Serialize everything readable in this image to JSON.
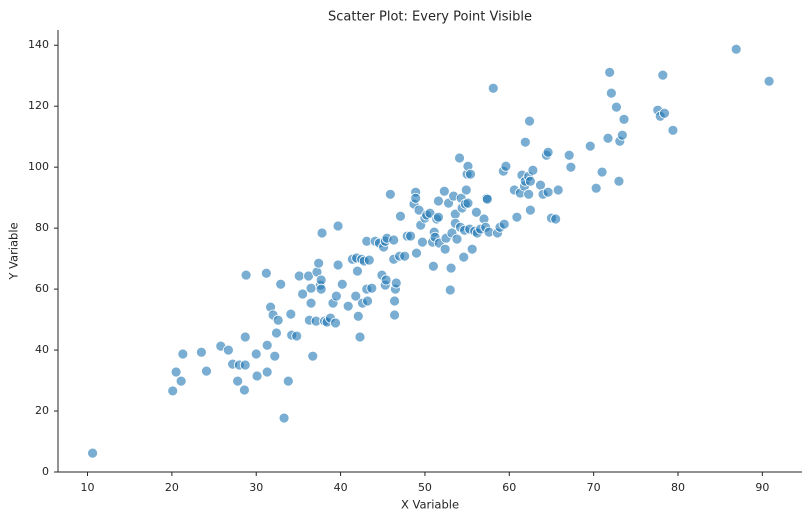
{
  "chart_data": {
    "type": "scatter",
    "title": "Scatter Plot: Every Point Visible",
    "x_label": "X Variable",
    "y_label": "Y Variable",
    "color": "#1f77b4",
    "xlim": [
      6.5,
      94.7
    ],
    "ylim": [
      0,
      145
    ],
    "xticks": [
      10,
      20,
      30,
      40,
      50,
      60,
      70,
      80,
      90
    ],
    "yticks": [
      0,
      20,
      40,
      60,
      80,
      100,
      120,
      140
    ],
    "x": [
      10.6,
      20.1,
      20.5,
      21.3,
      21.1,
      23.5,
      24.1,
      25.8,
      26.7,
      27.2,
      27.8,
      28.0,
      28.6,
      28.7,
      28.7,
      28.8,
      30.0,
      30.1,
      31.2,
      31.3,
      31.3,
      31.7,
      32.0,
      32.2,
      32.4,
      32.6,
      32.9,
      33.3,
      33.8,
      34.1,
      34.2,
      34.8,
      35.1,
      35.5,
      36.2,
      36.3,
      36.5,
      36.5,
      36.7,
      37.1,
      37.2,
      37.4,
      37.6,
      37.7,
      37.7,
      37.8,
      38.1,
      38.4,
      38.8,
      39.1,
      39.4,
      39.5,
      39.7,
      39.7,
      40.2,
      40.9,
      41.4,
      41.8,
      42.0,
      41.9,
      42.1,
      42.3,
      42.5,
      42.6,
      42.8,
      43.1,
      43.1,
      43.2,
      43.4,
      43.7,
      44.1,
      44.6,
      44.9,
      45.1,
      45.3,
      45.3,
      45.4,
      45.5,
      45.9,
      46.3,
      46.3,
      46.4,
      46.4,
      46.5,
      46.6,
      47.0,
      47.1,
      47.6,
      47.9,
      48.3,
      48.7,
      48.9,
      48.9,
      49.0,
      49.3,
      49.5,
      49.7,
      50.0,
      50.2,
      50.6,
      50.9,
      51.0,
      51.1,
      51.2,
      51.4,
      51.6,
      51.6,
      51.7,
      52.3,
      52.4,
      52.5,
      52.8,
      53.0,
      53.1,
      53.2,
      53.4,
      53.6,
      53.6,
      53.8,
      54.1,
      54.2,
      54.3,
      54.4,
      54.6,
      54.7,
      54.8,
      54.9,
      55.0,
      55.1,
      55.1,
      55.3,
      55.4,
      55.6,
      55.9,
      56.1,
      56.2,
      56.6,
      57.0,
      57.2,
      57.3,
      57.4,
      57.6,
      58.1,
      58.6,
      58.9,
      59.3,
      59.6,
      59.4,
      60.6,
      60.9,
      61.3,
      61.5,
      61.8,
      61.9,
      61.9,
      62.3,
      62.3,
      62.4,
      62.5,
      62.5,
      62.8,
      63.7,
      64.0,
      64.4,
      64.6,
      64.6,
      65.0,
      65.5,
      65.8,
      67.1,
      67.3,
      69.6,
      70.3,
      71.0,
      71.7,
      71.9,
      72.1,
      72.7,
      73.0,
      73.1,
      73.4,
      73.6,
      77.6,
      77.9,
      78.2,
      78.4,
      79.4,
      86.9,
      90.8
    ],
    "y": [
      6.2,
      26.6,
      32.8,
      38.7,
      29.8,
      39.3,
      33.1,
      41.3,
      40.0,
      35.4,
      29.8,
      35.1,
      26.9,
      35.1,
      44.3,
      64.6,
      38.7,
      31.5,
      65.2,
      41.6,
      32.8,
      54.1,
      51.5,
      38.0,
      45.6,
      49.8,
      61.6,
      17.7,
      29.8,
      51.8,
      44.9,
      44.6,
      64.3,
      58.4,
      64.3,
      49.8,
      55.4,
      60.3,
      38.0,
      49.5,
      65.6,
      68.5,
      61.3,
      63.0,
      60.0,
      78.4,
      49.5,
      49.2,
      50.5,
      55.4,
      48.9,
      57.7,
      67.9,
      80.7,
      61.6,
      54.4,
      69.8,
      57.7,
      65.9,
      70.2,
      51.1,
      44.3,
      69.8,
      55.4,
      69.2,
      75.7,
      60.0,
      56.1,
      69.5,
      60.3,
      75.7,
      75.1,
      64.6,
      73.8,
      75.7,
      61.3,
      63.0,
      76.7,
      91.1,
      69.8,
      76.1,
      56.1,
      51.5,
      60.0,
      62.0,
      70.8,
      83.9,
      70.8,
      77.4,
      77.4,
      87.9,
      91.8,
      89.8,
      71.8,
      85.9,
      81.0,
      75.4,
      83.3,
      84.3,
      84.9,
      75.4,
      67.5,
      78.7,
      77.0,
      83.0,
      83.6,
      88.9,
      75.1,
      92.1,
      73.1,
      76.7,
      88.2,
      59.7,
      66.9,
      78.4,
      90.5,
      84.6,
      81.6,
      76.4,
      103.0,
      80.3,
      89.8,
      86.6,
      70.5,
      79.3,
      87.9,
      92.5,
      97.7,
      100.3,
      88.2,
      79.7,
      97.7,
      73.1,
      79.0,
      85.2,
      78.4,
      79.7,
      83.0,
      80.3,
      89.8,
      89.5,
      78.7,
      125.9,
      78.4,
      80.3,
      98.7,
      100.3,
      81.3,
      92.5,
      83.6,
      91.5,
      97.4,
      93.8,
      108.2,
      95.4,
      97.0,
      91.1,
      115.1,
      85.9,
      95.4,
      99.0,
      94.1,
      91.1,
      103.9,
      104.9,
      91.8,
      83.3,
      83.0,
      92.5,
      103.9,
      100.0,
      106.9,
      93.1,
      98.4,
      109.5,
      131.1,
      124.3,
      119.7,
      95.4,
      108.5,
      110.5,
      115.7,
      118.7,
      116.7,
      130.2,
      117.7,
      112.1,
      138.7,
      128.2
    ]
  }
}
